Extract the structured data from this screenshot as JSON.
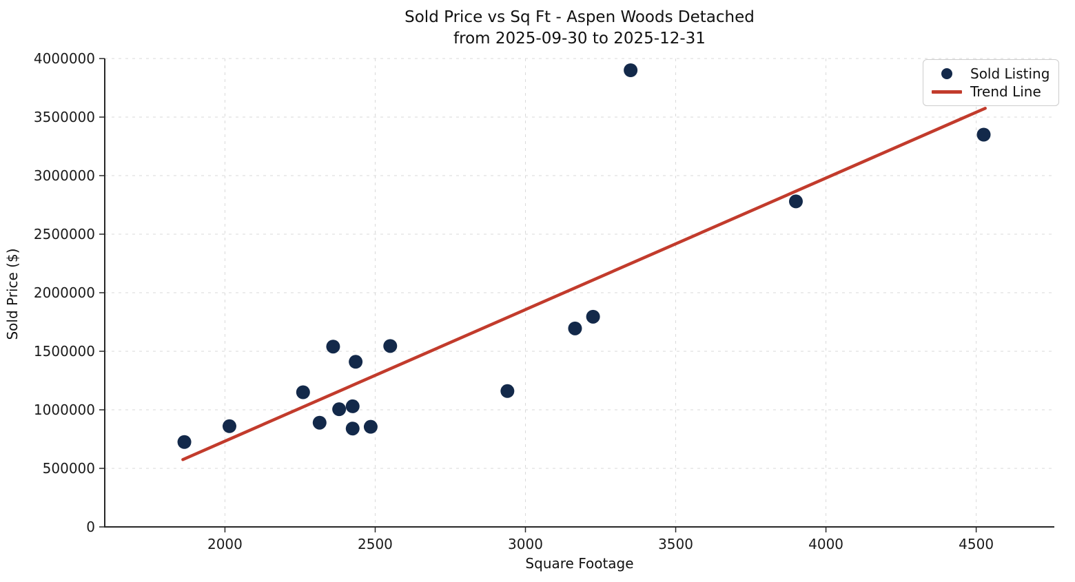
{
  "chart_data": {
    "type": "scatter",
    "title_line1": "Sold Price vs Sq Ft - Aspen Woods Detached",
    "title_line2": "from 2025-09-30 to 2025-12-31",
    "xlabel": "Square Footage",
    "ylabel": "Sold Price ($)",
    "xlim": [
      1600,
      4760
    ],
    "ylim": [
      0,
      4000000
    ],
    "x_ticks": [
      2000,
      2500,
      3000,
      3500,
      4000,
      4500
    ],
    "y_ticks": [
      0,
      500000,
      1000000,
      1500000,
      2000000,
      2500000,
      3000000,
      3500000,
      4000000
    ],
    "grid": true,
    "grid_style": "dashed",
    "legend_position": "upper right",
    "series": [
      {
        "name": "Sold Listing",
        "kind": "scatter",
        "color": "#13294a",
        "points": [
          {
            "sqft": 1865,
            "price": 725000
          },
          {
            "sqft": 2015,
            "price": 860000
          },
          {
            "sqft": 2260,
            "price": 1150000
          },
          {
            "sqft": 2315,
            "price": 890000
          },
          {
            "sqft": 2360,
            "price": 1540000
          },
          {
            "sqft": 2380,
            "price": 1005000
          },
          {
            "sqft": 2425,
            "price": 1030000
          },
          {
            "sqft": 2425,
            "price": 840000
          },
          {
            "sqft": 2435,
            "price": 1410000
          },
          {
            "sqft": 2485,
            "price": 855000
          },
          {
            "sqft": 2550,
            "price": 1545000
          },
          {
            "sqft": 2940,
            "price": 1160000
          },
          {
            "sqft": 3165,
            "price": 1695000
          },
          {
            "sqft": 3225,
            "price": 1795000
          },
          {
            "sqft": 3350,
            "price": 3900000
          },
          {
            "sqft": 3900,
            "price": 2780000
          },
          {
            "sqft": 4525,
            "price": 3350000
          }
        ]
      },
      {
        "name": "Trend Line",
        "kind": "line",
        "color": "#c23b2c",
        "points": [
          {
            "sqft": 1860,
            "price": 575000
          },
          {
            "sqft": 4530,
            "price": 3575000
          }
        ]
      }
    ],
    "legend": [
      {
        "label": "Sold Listing",
        "marker": "dot",
        "color": "#13294a"
      },
      {
        "label": "Trend Line",
        "marker": "line",
        "color": "#c23b2c"
      }
    ],
    "axis_color": "#262626",
    "grid_color": "#d9d9d9",
    "tick_label_color": "#1a1a1a",
    "background": "#ffffff"
  }
}
